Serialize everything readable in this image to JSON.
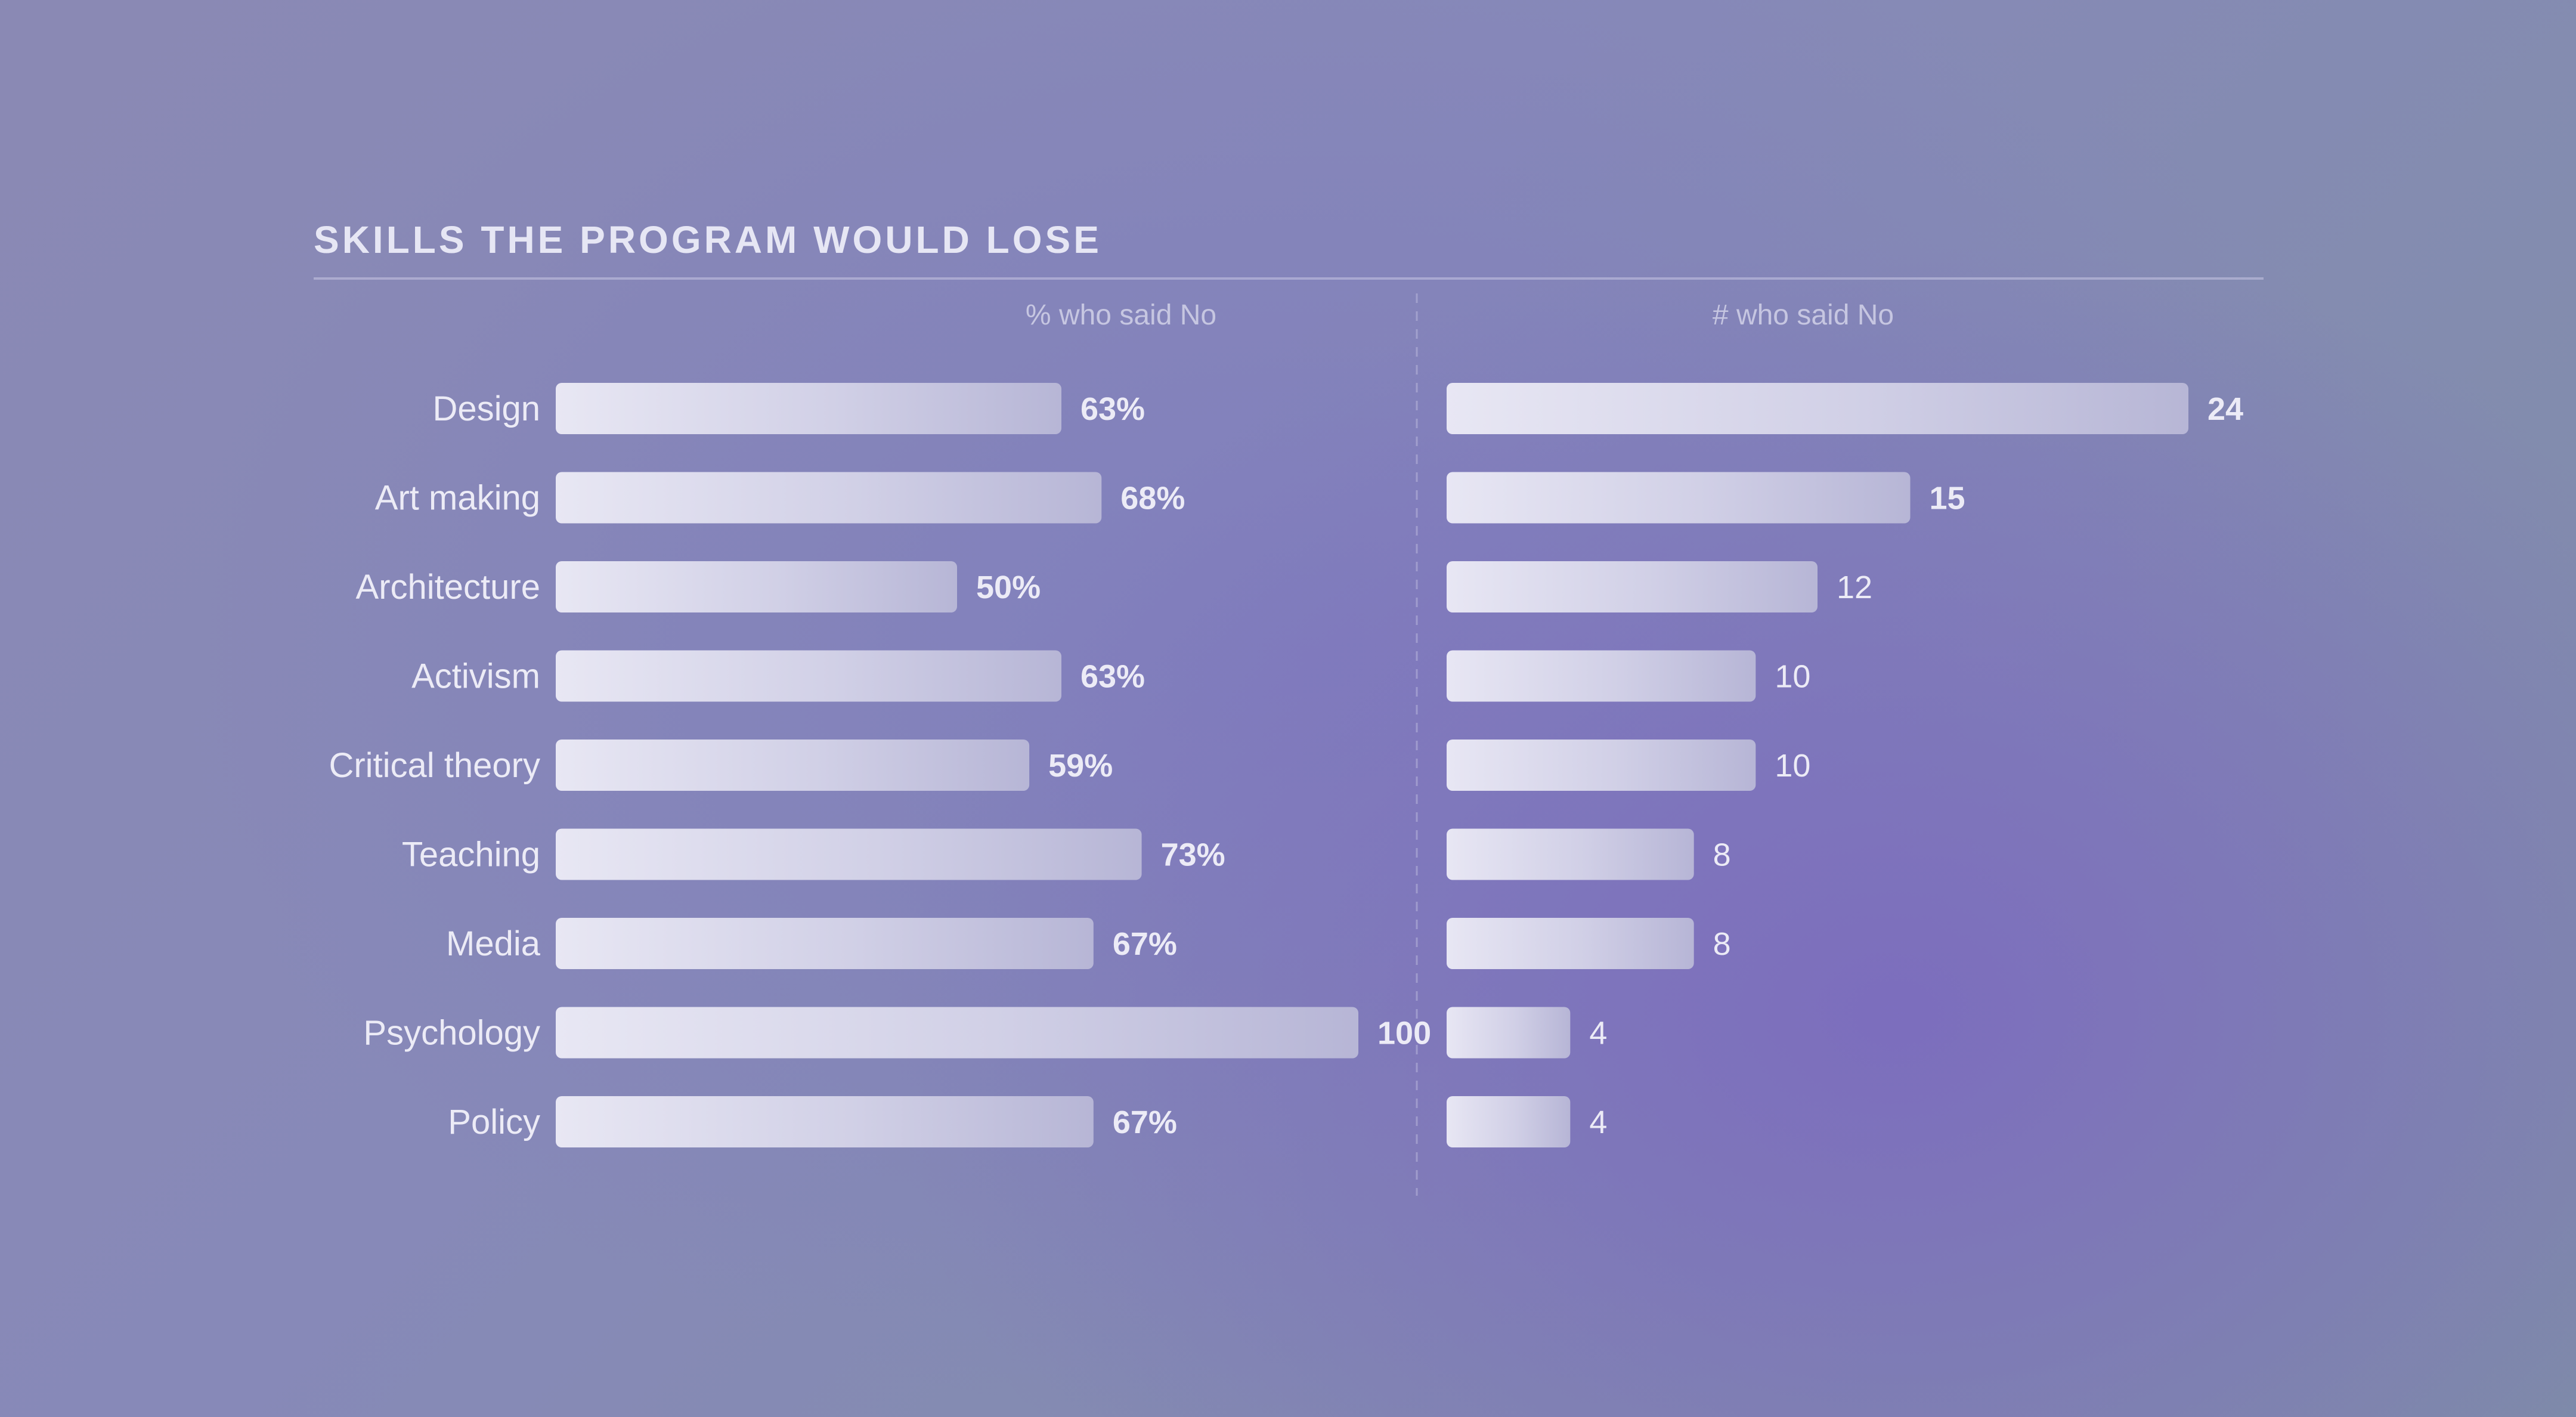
{
  "chart_data": {
    "type": "bar",
    "title": "SKILLS THE PROGRAM WOULD LOSE",
    "categories": [
      "Design",
      "Art making",
      "Architecture",
      "Activism",
      "Critical theory",
      "Teaching",
      "Media",
      "Psychology",
      "Policy"
    ],
    "series": [
      {
        "name": "% who said No",
        "values": [
          63,
          68,
          50,
          63,
          59,
          73,
          67,
          100,
          67
        ],
        "labels": [
          "63%",
          "68%",
          "50%",
          "63%",
          "59%",
          "73%",
          "67%",
          "100",
          "67%"
        ],
        "xlim": [
          0,
          100
        ]
      },
      {
        "name": "# who said No",
        "values": [
          24,
          15,
          12,
          10,
          10,
          8,
          8,
          4,
          4
        ],
        "labels": [
          "24",
          "15",
          "12",
          "10",
          "10",
          "8",
          "8",
          "4",
          "4"
        ],
        "xlim": [
          0,
          24
        ]
      }
    ],
    "grid": false,
    "legend": "none"
  },
  "colors": {
    "title": "#e6e6f4",
    "category_label": "#ecebf6",
    "column_header": "#cdcde6",
    "bar_light": "#ebeaf5",
    "bar_dark": "#b8b7d6"
  }
}
